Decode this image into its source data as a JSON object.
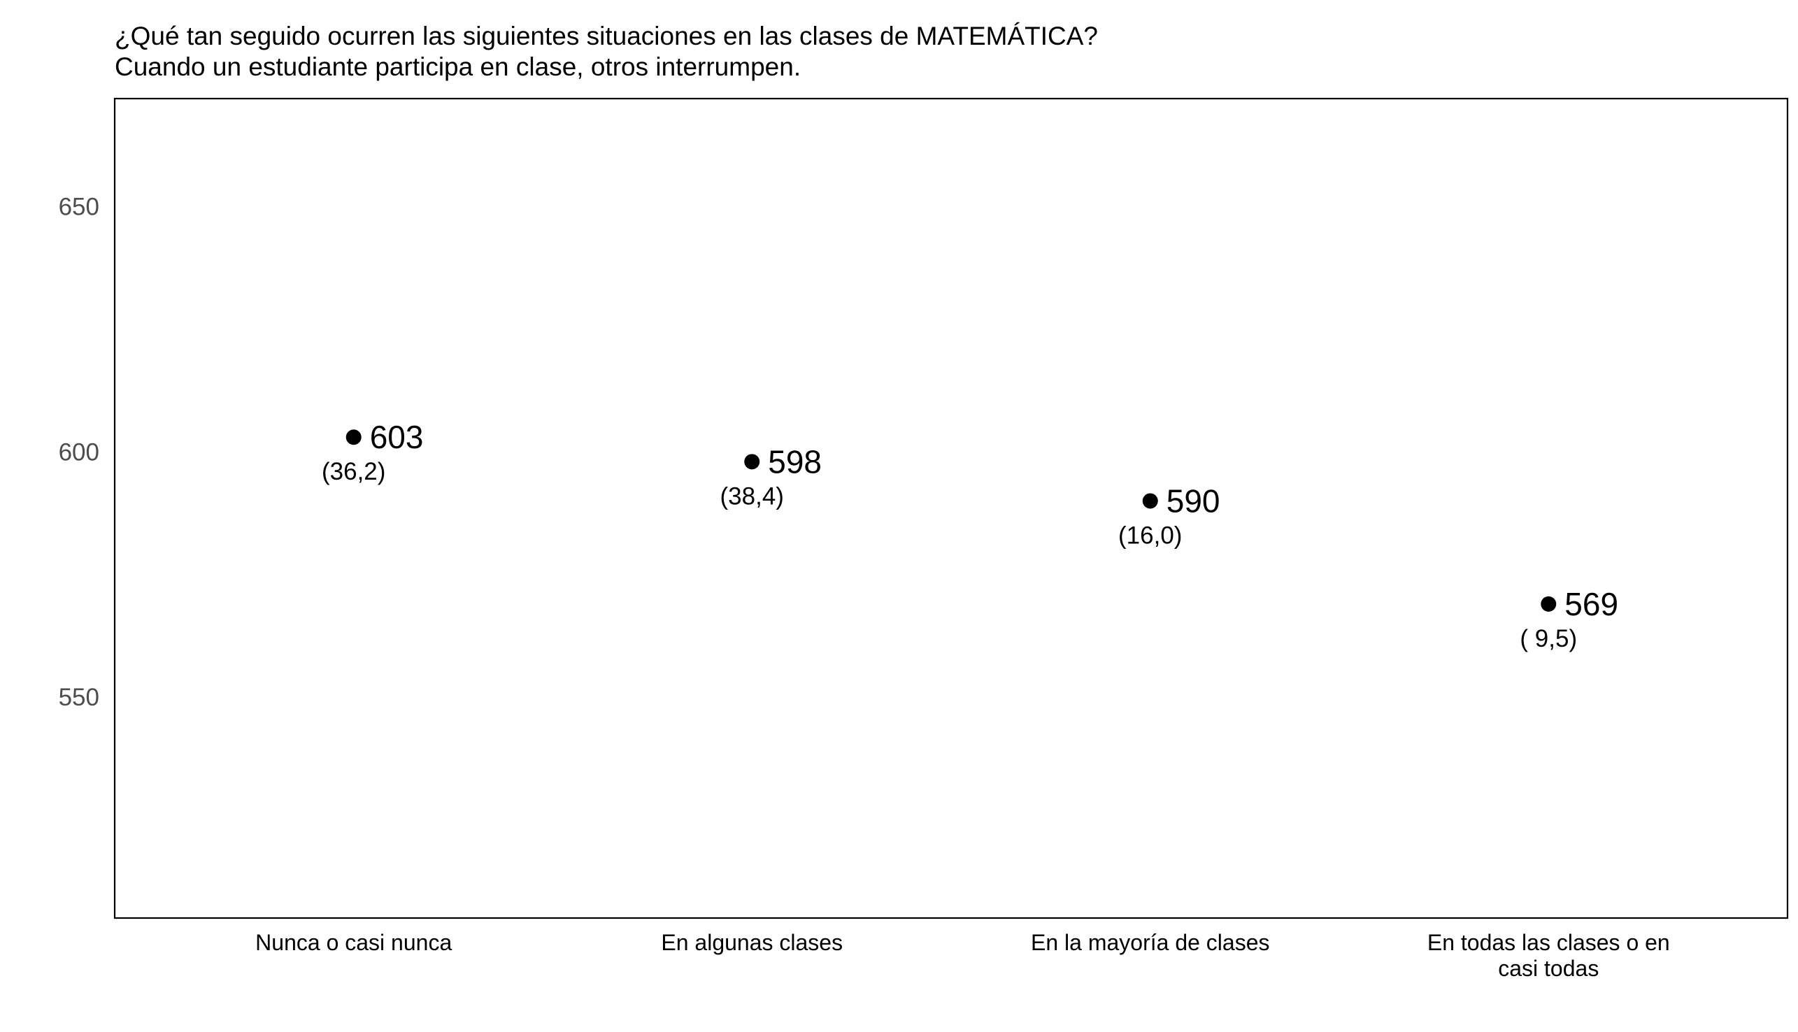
{
  "chart_data": {
    "type": "scatter",
    "title": "¿Qué tan seguido ocurren las siguientes situaciones en las clases de MATEMÁTICA?",
    "subtitle": "Cuando un estudiante participa en clase, otros interrumpen.",
    "xlabel": "",
    "ylabel": "",
    "categories": [
      [
        "Nunca o casi nunca"
      ],
      [
        "En algunas clases"
      ],
      [
        "En la mayoría de clases"
      ],
      [
        "En todas las clases o en",
        "casi todas"
      ]
    ],
    "values": [
      603,
      598,
      590,
      569
    ],
    "value_labels": [
      "603",
      "598",
      "590",
      "569"
    ],
    "percent_labels": [
      "(36,2)",
      "(38,4)",
      "(16,0)",
      "( 9,5)"
    ],
    "ylim": [
      505,
      672
    ],
    "yticks": [
      550,
      600,
      650
    ],
    "grid": false,
    "legend": "none",
    "colors": {
      "point": "#000000",
      "frame": "#000000",
      "tick_text": "#4d4d4d",
      "background": "#ffffff"
    }
  }
}
